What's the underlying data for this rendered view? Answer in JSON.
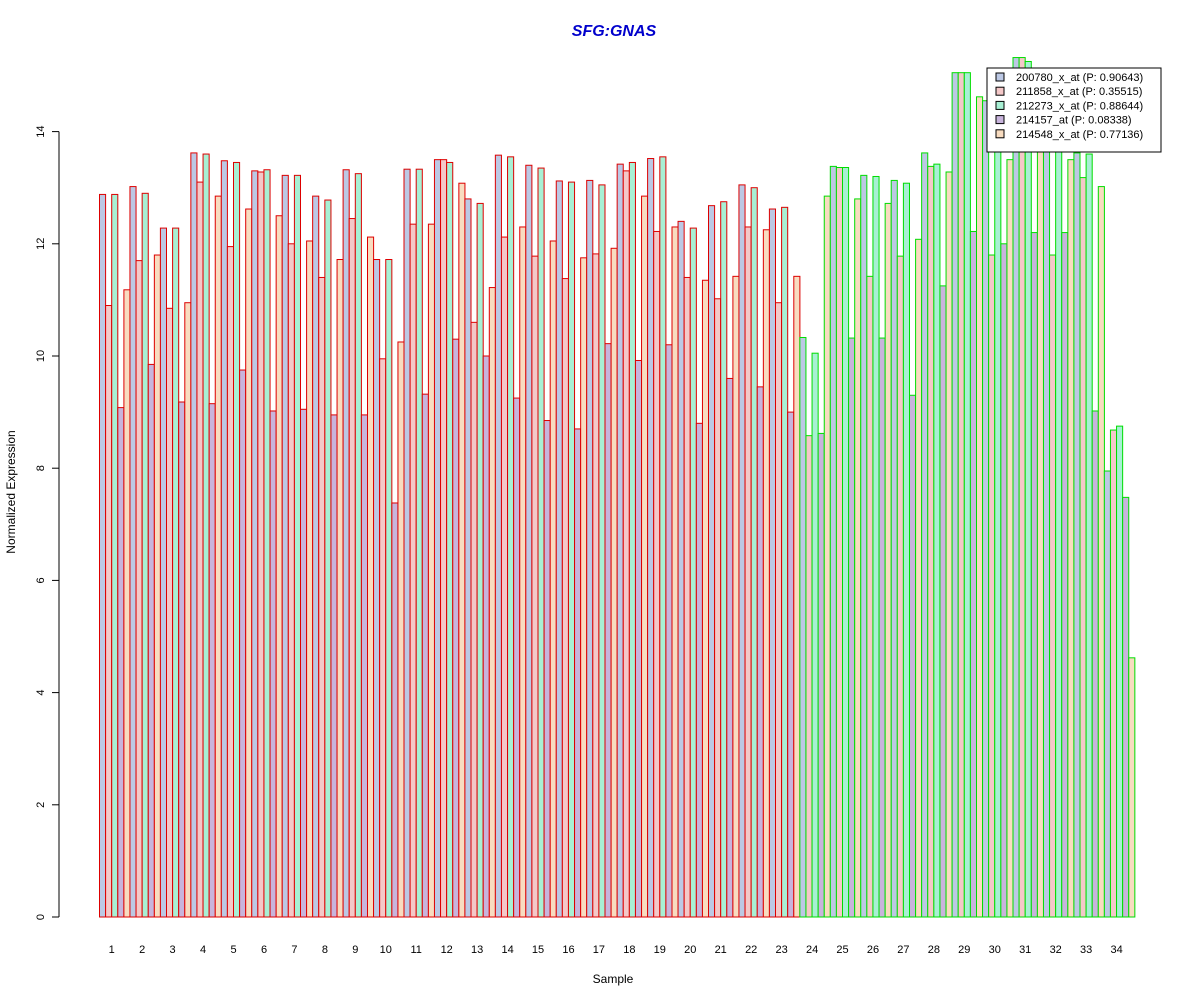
{
  "chart_data": {
    "type": "bar",
    "title": "SFG:GNAS",
    "xlabel": "Sample",
    "ylabel": "Normalized Expression",
    "ylim": [
      0,
      15.5
    ],
    "yticks": [
      0,
      2,
      4,
      6,
      8,
      10,
      12,
      14
    ],
    "legend_position": "top-right",
    "categories": [
      "1",
      "2",
      "3",
      "4",
      "5",
      "6",
      "7",
      "8",
      "9",
      "10",
      "11",
      "12",
      "13",
      "14",
      "15",
      "16",
      "17",
      "18",
      "19",
      "20",
      "21",
      "22",
      "23",
      "24",
      "25",
      "26",
      "27",
      "28",
      "29",
      "30",
      "31",
      "32",
      "33",
      "34"
    ],
    "groups": [
      {
        "samples": [
          1,
          23
        ],
        "border_color": "#dd0000"
      },
      {
        "samples": [
          24,
          34
        ],
        "border_color": "#00dd00"
      }
    ],
    "series": [
      {
        "name": "200780_x_at (P: 0.90643)",
        "fill": "#bcc8e4",
        "values": [
          12.88,
          13.02,
          12.28,
          13.62,
          13.48,
          13.3,
          13.22,
          12.85,
          13.32,
          11.72,
          13.33,
          13.5,
          12.8,
          13.58,
          13.4,
          13.12,
          13.13,
          13.42,
          13.52,
          12.4,
          12.68,
          13.05,
          12.62,
          10.33,
          13.38,
          13.22,
          13.13,
          13.62,
          15.05,
          14.55,
          15.32,
          13.8,
          13.62,
          7.95
        ]
      },
      {
        "name": "211858_x_at (P: 0.35515)",
        "fill": "#f4c8c8",
        "values": [
          10.9,
          11.7,
          10.85,
          13.1,
          11.95,
          13.28,
          12.0,
          11.4,
          12.45,
          9.95,
          12.35,
          13.5,
          10.6,
          12.12,
          11.78,
          11.38,
          11.82,
          13.3,
          12.22,
          11.4,
          11.02,
          12.3,
          10.95,
          8.58,
          13.36,
          11.42,
          11.78,
          13.38,
          15.05,
          11.8,
          15.32,
          11.8,
          13.18,
          8.68
        ]
      },
      {
        "name": "212273_x_at (P: 0.88644)",
        "fill": "#a8f0d4",
        "values": [
          12.88,
          12.9,
          12.28,
          13.6,
          13.45,
          13.32,
          13.22,
          12.78,
          13.25,
          11.72,
          13.33,
          13.45,
          12.72,
          13.55,
          13.35,
          13.1,
          13.05,
          13.45,
          13.55,
          12.28,
          12.75,
          13.0,
          12.65,
          10.05,
          13.36,
          13.2,
          13.08,
          13.42,
          15.05,
          14.55,
          15.25,
          13.8,
          13.6,
          8.75
        ]
      },
      {
        "name": "214157_at (P: 0.08338)",
        "fill": "#c8b4dc",
        "values": [
          9.08,
          9.85,
          9.18,
          9.15,
          9.75,
          9.02,
          9.05,
          8.95,
          8.95,
          7.38,
          9.32,
          10.3,
          10.0,
          9.25,
          8.85,
          8.7,
          10.22,
          9.92,
          10.2,
          8.8,
          9.6,
          9.45,
          9.0,
          8.62,
          10.32,
          10.32,
          9.3,
          11.25,
          12.22,
          12.0,
          12.2,
          12.2,
          9.02,
          7.48
        ]
      },
      {
        "name": "214548_x_at (P: 0.77136)",
        "fill": "#f8dcc0",
        "values": [
          11.18,
          11.8,
          10.95,
          12.85,
          12.62,
          12.5,
          12.05,
          11.72,
          12.12,
          10.25,
          12.35,
          13.08,
          11.22,
          12.3,
          12.05,
          11.75,
          11.92,
          12.85,
          12.3,
          11.35,
          11.42,
          12.25,
          11.42,
          12.85,
          12.8,
          12.72,
          12.08,
          13.28,
          14.62,
          13.5,
          14.5,
          13.5,
          13.02,
          4.62
        ]
      }
    ]
  }
}
